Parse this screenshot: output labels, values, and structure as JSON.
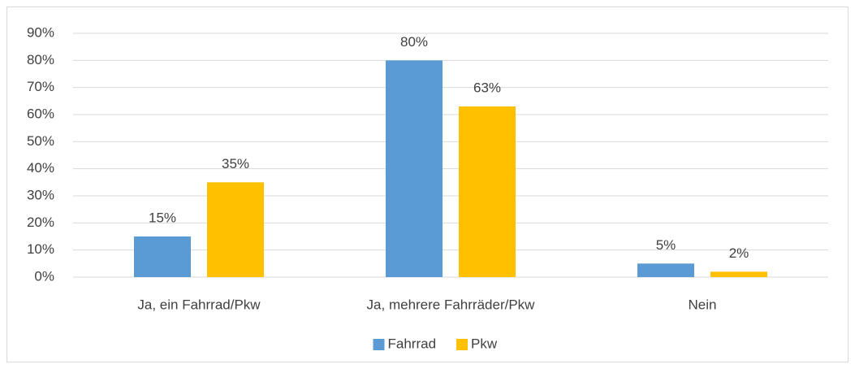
{
  "chart_data": {
    "type": "bar",
    "categories": [
      "Ja, ein Fahrrad/Pkw",
      "Ja, mehrere Fahrräder/Pkw",
      "Nein"
    ],
    "series": [
      {
        "name": "Fahrrad",
        "color": "#5b9bd5",
        "values": [
          15,
          80,
          5
        ],
        "value_labels": [
          "15%",
          "80%",
          "5%"
        ]
      },
      {
        "name": "Pkw",
        "color": "#ffc000",
        "values": [
          35,
          63,
          2
        ],
        "value_labels": [
          "35%",
          "63%",
          "2%"
        ]
      }
    ],
    "ylim": [
      0,
      90
    ],
    "yticks": [
      {
        "value": 0,
        "label": "0%"
      },
      {
        "value": 10,
        "label": "10%"
      },
      {
        "value": 20,
        "label": "20%"
      },
      {
        "value": 30,
        "label": "30%"
      },
      {
        "value": 40,
        "label": "40%"
      },
      {
        "value": 50,
        "label": "50%"
      },
      {
        "value": 60,
        "label": "60%"
      },
      {
        "value": 70,
        "label": "70%"
      },
      {
        "value": 80,
        "label": "80%"
      },
      {
        "value": 90,
        "label": "90%"
      }
    ],
    "grid": true,
    "legend": "bottom"
  }
}
